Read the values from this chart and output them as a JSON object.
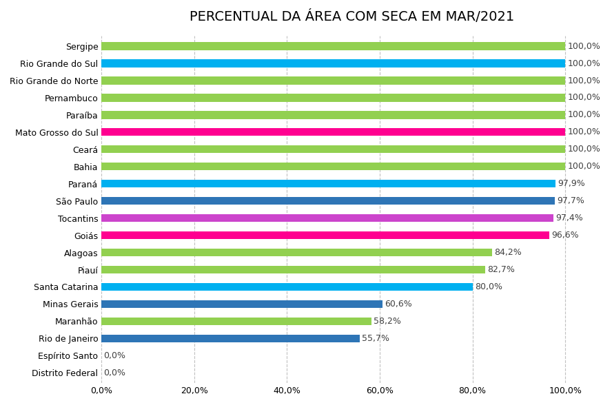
{
  "title": "PERCENTUAL DA ÁREA COM SECA EM MAR/2021",
  "categories": [
    "Distrito Federal",
    "Espírito Santo",
    "Rio de Janeiro",
    "Maranhão",
    "Minas Gerais",
    "Santa Catarina",
    "Piauí",
    "Alagoas",
    "Goiás",
    "Tocantins",
    "São Paulo",
    "Paraná",
    "Bahia",
    "Ceará",
    "Mato Grosso do Sul",
    "Paraíba",
    "Pernambuco",
    "Rio Grande do Norte",
    "Rio Grande do Sul",
    "Sergipe"
  ],
  "values": [
    0.0,
    0.0,
    55.7,
    58.2,
    60.6,
    80.0,
    82.7,
    84.2,
    96.6,
    97.4,
    97.7,
    97.9,
    100.0,
    100.0,
    100.0,
    100.0,
    100.0,
    100.0,
    100.0,
    100.0
  ],
  "colors": [
    "#92D050",
    "#92D050",
    "#2E75B6",
    "#92D050",
    "#2E75B6",
    "#00B0F0",
    "#92D050",
    "#92D050",
    "#FF0090",
    "#CC44CC",
    "#2E75B6",
    "#00B0F0",
    "#92D050",
    "#92D050",
    "#FF0090",
    "#92D050",
    "#92D050",
    "#92D050",
    "#00B0F0",
    "#92D050"
  ],
  "xlim_max": 108,
  "xtick_labels": [
    "0,0%",
    "20,0%",
    "40,0%",
    "60,0%",
    "80,0%",
    "100,0%"
  ],
  "xtick_values": [
    0,
    20,
    40,
    60,
    80,
    100
  ],
  "bar_height": 0.45,
  "label_fontsize": 9,
  "title_fontsize": 14,
  "background_color": "#FFFFFF",
  "grid_color": "#C0C0C0",
  "ytick_fontsize": 9,
  "xtick_fontsize": 9
}
